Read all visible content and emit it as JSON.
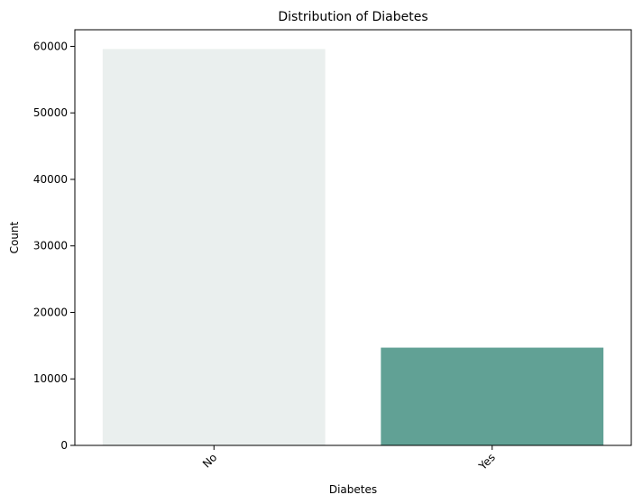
{
  "chart_data": {
    "type": "bar",
    "title": "Distribution of Diabetes",
    "xlabel": "Diabetes",
    "ylabel": "Count",
    "categories": [
      "No",
      "Yes"
    ],
    "values": [
      59600,
      14700
    ],
    "colors": [
      "#eaefee",
      "#61a195"
    ],
    "ylim": [
      0,
      62500
    ],
    "yticks": [
      0,
      10000,
      20000,
      30000,
      40000,
      50000,
      60000
    ],
    "ytick_labels": [
      "0",
      "10000",
      "20000",
      "30000",
      "40000",
      "50000",
      "60000"
    ],
    "grid": false,
    "legend": "none"
  }
}
